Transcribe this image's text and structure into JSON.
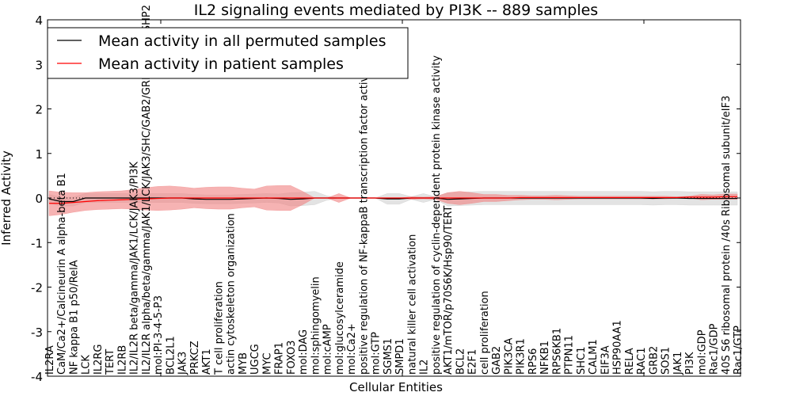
{
  "chart_data": {
    "type": "line",
    "title": "IL2 signaling events mediated by PI3K -- 889 samples",
    "xlabel": "Cellular Entities",
    "ylabel": "Inferred Activity",
    "ylim": [
      -4,
      4
    ],
    "yticks": [
      "-4",
      "-3",
      "-2",
      "-1",
      "0",
      "1",
      "2",
      "3",
      "4"
    ],
    "legend": {
      "placement": "top-left",
      "entries": [
        {
          "label": "Mean activity in all permuted samples",
          "color": "#000000"
        },
        {
          "label": "Mean activity in patient samples",
          "color": "#ff0000"
        }
      ]
    },
    "categories": [
      "IL2RA",
      "CaM/Ca2+/Calcineurin A alpha-beta B1",
      "NF kappa B1 p50/RelA",
      "LCK",
      "IL2RG",
      "TERT",
      "IL2RB",
      "IL2/IL2R beta/gamma/JAK1/LCK/JAK3/PI3K",
      "IL2/IL2R alpha/beta/gamma/JAK1/LCK/JAK3/SHC/GAB2/GRB2/SOS1/SHP2",
      "mol:PI-3-4-5-P3",
      "BCL2L1",
      "JAK3",
      "PRKCZ",
      "AKT1",
      "T cell proliferation",
      "actin cytoskeleton organization",
      "MYB",
      "UGCG",
      "MYC",
      "FRAP1",
      "FOXO3",
      "mol:DAG",
      "mol:sphingomyelin",
      "mol:cAMP",
      "mol:glucosylceramide",
      "mol:Ca2+",
      "positive regulation of NF-kappaB transcription factor activity",
      "mol:GTP",
      "SGMS1",
      "SMPD1",
      "natural killer cell activation",
      "IL2",
      "positive regulation of cyclin-dependent protein kinase activity",
      "AKT1/mTOR/p70S6K/Hsp90/TERT",
      "BCL2",
      "E2F1",
      "cell proliferation",
      "GAB2",
      "PIK3CA",
      "PIK3R1",
      "RPS6",
      "NFKB1",
      "RPS6KB1",
      "PTPN11",
      "SHC1",
      "CALM1",
      "EIF3A",
      "HSP90AA1",
      "RELA",
      "RAC1",
      "GRB2",
      "SOS1",
      "JAK1",
      "PI3K",
      "mol:GDP",
      "Rac1/GDP",
      "40S S6 ribosomal protein /40s Ribosomal subunit/eIF3",
      "Rac1/GTP"
    ],
    "series": [
      {
        "name": "Mean activity in all permuted samples",
        "color": "#000000",
        "values": [
          -0.02,
          -0.08,
          -0.08,
          0.0,
          0.0,
          0.0,
          0.0,
          0.0,
          0.0,
          0.0,
          0.0,
          0.0,
          -0.02,
          -0.03,
          -0.03,
          -0.03,
          -0.02,
          -0.01,
          0.0,
          -0.01,
          -0.03,
          -0.02,
          0.0,
          0.0,
          0.0,
          0.0,
          0.0,
          0.0,
          -0.02,
          -0.02,
          0.0,
          0.0,
          0.0,
          -0.03,
          -0.02,
          -0.01,
          0.0,
          0.0,
          0.0,
          0.0,
          0.0,
          0.0,
          0.0,
          0.0,
          0.0,
          0.0,
          0.0,
          0.0,
          0.0,
          0.0,
          -0.01,
          0.0,
          0.0,
          -0.01,
          -0.01,
          -0.01,
          -0.01,
          -0.01
        ],
        "band": {
          "color": "#c8c8c8",
          "halfwidth": [
            0.1,
            0.1,
            0.1,
            0.1,
            0.1,
            0.1,
            0.1,
            0.1,
            0.1,
            0.1,
            0.1,
            0.1,
            0.1,
            0.1,
            0.1,
            0.1,
            0.1,
            0.1,
            0.1,
            0.1,
            0.15,
            0.15,
            0.15,
            0.05,
            0.0,
            0.0,
            0.0,
            0.0,
            0.12,
            0.12,
            0.03,
            0.1,
            0.03,
            0.15,
            0.15,
            0.15,
            0.15,
            0.15,
            0.15,
            0.15,
            0.15,
            0.15,
            0.15,
            0.15,
            0.15,
            0.15,
            0.15,
            0.15,
            0.15,
            0.15,
            0.15,
            0.15,
            0.15,
            0.15,
            0.15,
            0.15,
            0.15,
            0.15
          ]
        }
      },
      {
        "name": "Mean activity in patient samples",
        "color": "#ff0000",
        "values": [
          -0.12,
          -0.12,
          -0.1,
          -0.08,
          -0.06,
          -0.05,
          -0.04,
          -0.03,
          -0.02,
          -0.01,
          0.0,
          0.0,
          0.0,
          0.0,
          0.0,
          0.0,
          0.0,
          0.0,
          0.0,
          0.0,
          0.0,
          0.0,
          0.0,
          0.0,
          0.0,
          0.0,
          0.0,
          0.0,
          0.0,
          0.0,
          0.0,
          0.0,
          0.0,
          0.0,
          0.0,
          0.0,
          0.0,
          0.0,
          0.0,
          0.01,
          0.01,
          0.01,
          0.01,
          0.01,
          0.01,
          0.01,
          0.01,
          0.01,
          0.01,
          0.01,
          0.01,
          0.01,
          0.01,
          0.02,
          0.02,
          0.02,
          0.03,
          0.03
        ],
        "band": {
          "color": "#f08080",
          "halfwidth": [
            0.28,
            0.25,
            0.22,
            0.2,
            0.2,
            0.2,
            0.2,
            0.22,
            0.25,
            0.27,
            0.27,
            0.25,
            0.22,
            0.24,
            0.25,
            0.25,
            0.22,
            0.2,
            0.27,
            0.28,
            0.28,
            0.15,
            0.0,
            0.0,
            0.1,
            0.0,
            0.0,
            0.0,
            0.0,
            0.0,
            0.03,
            0.02,
            0.03,
            0.12,
            0.15,
            0.12,
            0.08,
            0.08,
            0.06,
            0.05,
            0.04,
            0.04,
            0.05,
            0.04,
            0.03,
            0.03,
            0.03,
            0.03,
            0.03,
            0.03,
            0.03,
            0.03,
            0.02,
            0.02,
            0.06,
            0.05,
            0.06,
            0.06
          ]
        }
      }
    ]
  }
}
